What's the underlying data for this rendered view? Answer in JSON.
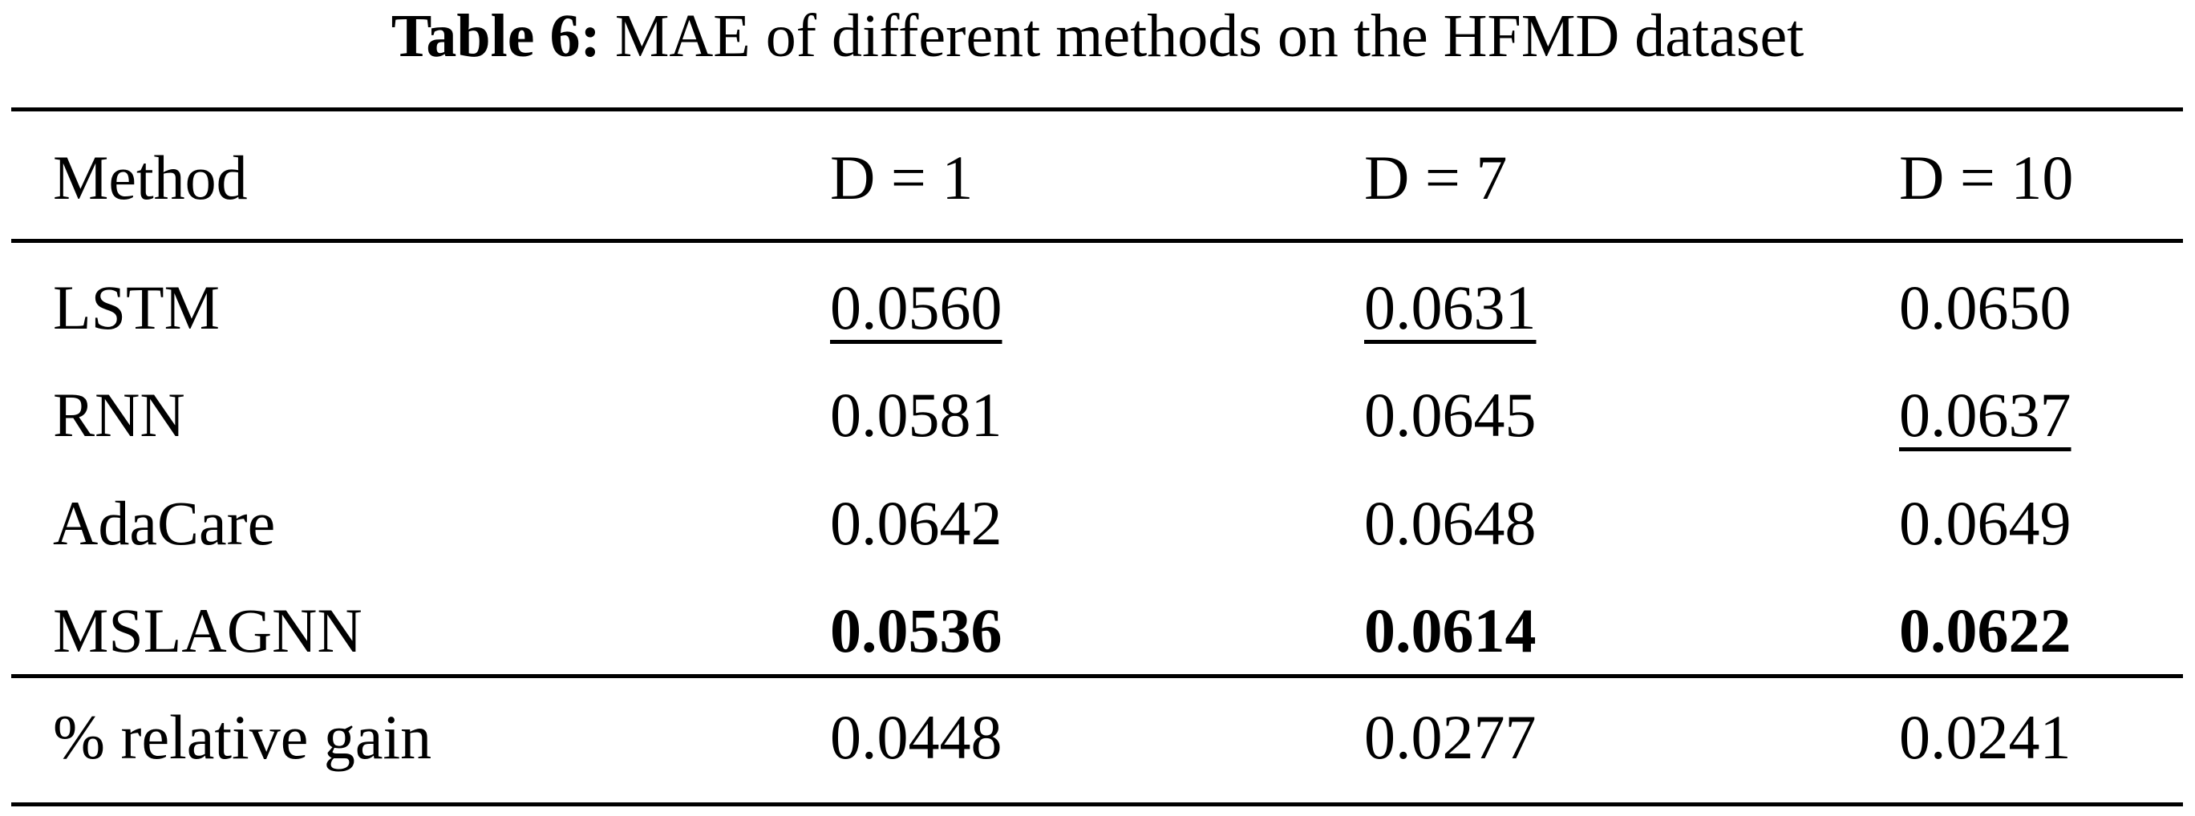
{
  "caption": {
    "label": "Table 6:",
    "text": "MAE of different methods on the HFMD dataset"
  },
  "table": {
    "header": [
      "Method",
      "D = 1",
      "D = 7",
      "D = 10"
    ],
    "rows": [
      [
        "LSTM",
        "0.0560",
        "0.0631",
        "0.0650"
      ],
      [
        "RNN",
        "0.0581",
        "0.0645",
        "0.0637"
      ],
      [
        "AdaCare",
        "0.0642",
        "0.0648",
        "0.0649"
      ],
      [
        "MSLAGNN",
        "0.0536",
        "0.0614",
        "0.0622"
      ]
    ],
    "footer": [
      "% relative gain",
      "0.0448",
      "0.0277",
      "0.0241"
    ]
  }
}
